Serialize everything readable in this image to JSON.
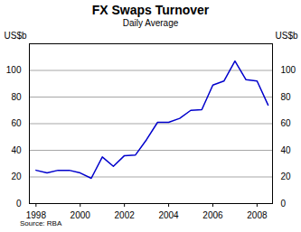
{
  "chart_data": {
    "type": "line",
    "title": "FX Swaps Turnover",
    "subtitle": "Daily Average",
    "ylabel": "US$b",
    "y2label": "US$b",
    "source": "Source: RBA",
    "x": [
      1998,
      1998.5,
      1999,
      1999.5,
      2000,
      2000.5,
      2001,
      2001.5,
      2002,
      2002.5,
      2003,
      2003.5,
      2004,
      2004.5,
      2005,
      2005.5,
      2006,
      2006.5,
      2007,
      2007.5,
      2008,
      2008.5
    ],
    "series": [
      {
        "name": "FX Swaps Turnover",
        "color": "#0000cc",
        "values": [
          25,
          23,
          25,
          25,
          23,
          19,
          35,
          28,
          36,
          36.5,
          48,
          61,
          61,
          64,
          70,
          70.5,
          89,
          92,
          107,
          93,
          92,
          74
        ]
      }
    ],
    "xlim": [
      1997.7,
      2008.7
    ],
    "xticks": [
      1998,
      2000,
      2002,
      2004,
      2006,
      2008
    ],
    "ylim": [
      0,
      120
    ],
    "yticks": [
      0,
      20,
      40,
      60,
      80,
      100
    ],
    "y2lim": [
      0,
      120
    ],
    "y2ticks": [
      0,
      20,
      40,
      60,
      80,
      100
    ],
    "grid": true
  }
}
